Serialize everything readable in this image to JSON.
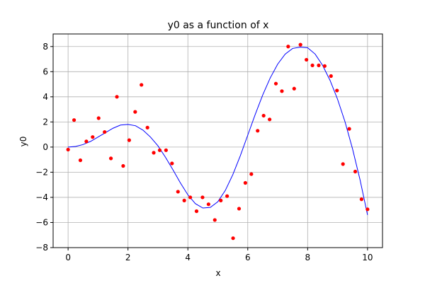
{
  "chart_data": {
    "type": "scatter",
    "title": "y0 as a function of x",
    "xlabel": "x",
    "ylabel": "y0",
    "xlim": [
      -0.5,
      10.5
    ],
    "ylim": [
      -8,
      9
    ],
    "xticks": [
      0,
      2,
      4,
      6,
      8,
      10
    ],
    "yticks": [
      -8,
      -6,
      -4,
      -2,
      0,
      2,
      4,
      6,
      8
    ],
    "grid": true,
    "colors": {
      "points": "#ff0000",
      "line": "#0000ff",
      "grid": "#b0b0b0"
    },
    "series": [
      {
        "type": "scatter",
        "x": [
          0.0,
          0.2,
          0.41,
          0.61,
          0.82,
          1.02,
          1.22,
          1.43,
          1.63,
          1.84,
          2.04,
          2.24,
          2.45,
          2.65,
          2.86,
          3.06,
          3.27,
          3.47,
          3.67,
          3.88,
          4.08,
          4.29,
          4.49,
          4.69,
          4.9,
          5.1,
          5.31,
          5.51,
          5.71,
          5.92,
          6.12,
          6.33,
          6.53,
          6.73,
          6.94,
          7.14,
          7.35,
          7.55,
          7.76,
          7.96,
          8.16,
          8.37,
          8.57,
          8.78,
          8.98,
          9.18,
          9.39,
          9.59,
          9.8,
          10.0
        ],
        "y": [
          -0.2,
          2.15,
          -1.05,
          0.45,
          0.8,
          2.3,
          1.2,
          -0.9,
          4.0,
          -1.5,
          0.55,
          2.8,
          4.95,
          1.55,
          -0.45,
          -0.25,
          -0.25,
          -1.3,
          -3.55,
          -4.25,
          -4.0,
          -5.1,
          -4.0,
          -4.55,
          -5.8,
          -4.25,
          -3.9,
          -7.25,
          -4.9,
          -2.85,
          -2.15,
          1.3,
          2.5,
          2.2,
          5.05,
          4.45,
          8.0,
          4.65,
          8.15,
          6.95,
          6.5,
          6.5,
          6.45,
          5.65,
          4.5,
          -1.35,
          1.45,
          -1.95,
          -4.15,
          -4.95
        ]
      },
      {
        "type": "line",
        "x": [
          0.0,
          0.25,
          0.5,
          0.75,
          1.0,
          1.25,
          1.5,
          1.75,
          2.0,
          2.25,
          2.5,
          2.75,
          3.0,
          3.25,
          3.5,
          3.75,
          4.0,
          4.25,
          4.5,
          4.75,
          5.0,
          5.25,
          5.5,
          5.75,
          6.0,
          6.25,
          6.5,
          6.75,
          7.0,
          7.25,
          7.5,
          7.75,
          8.0,
          8.25,
          8.5,
          8.75,
          9.0,
          9.25,
          9.5,
          9.75,
          10.0
        ],
        "y": [
          0.0,
          0.05,
          0.2,
          0.45,
          0.8,
          1.15,
          1.5,
          1.75,
          1.8,
          1.7,
          1.35,
          0.8,
          0.1,
          -0.8,
          -1.8,
          -2.85,
          -3.8,
          -4.5,
          -4.85,
          -4.8,
          -4.35,
          -3.45,
          -2.2,
          -0.7,
          0.95,
          2.6,
          4.15,
          5.5,
          6.6,
          7.4,
          7.85,
          7.95,
          7.9,
          7.4,
          6.5,
          5.3,
          3.8,
          2.0,
          -0.15,
          -2.6,
          -5.4
        ]
      }
    ]
  }
}
